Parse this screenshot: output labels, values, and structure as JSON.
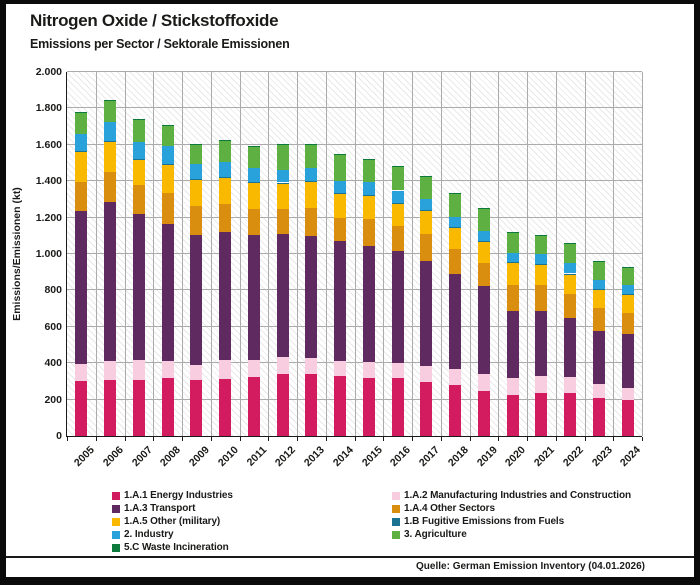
{
  "header": {
    "title": "Nitrogen Oxide / Stickstoffoxide",
    "subtitle": "Emissions per Sector / Sektorale Emissionen"
  },
  "footer": {
    "source": "Quelle: German Emission Inventory (04.01.2026)"
  },
  "chart_data": {
    "type": "bar",
    "stacked": true,
    "title": "Nitrogen Oxide / Stickstoffoxide",
    "subtitle": "Emissions per Sector / Sektorale Emissionen",
    "ylabel": "Emissions/Emissionen (kt)",
    "xlabel": "",
    "units": "kt",
    "ylim": [
      0,
      2000
    ],
    "ytick_step": 200,
    "ytick_labels": [
      "0",
      "200",
      "400",
      "600",
      "800",
      "1.000",
      "1.200",
      "1.400",
      "1.600",
      "1.800",
      "2.000"
    ],
    "grid": true,
    "plot_background": "hatched",
    "legend_position": "bottom",
    "categories": [
      "2005",
      "2006",
      "2007",
      "2008",
      "2009",
      "2010",
      "2011",
      "2012",
      "2013",
      "2014",
      "2015",
      "2016",
      "2017",
      "2018",
      "2019",
      "2020",
      "2021",
      "2022",
      "2023",
      "2024"
    ],
    "series": [
      {
        "id": "energy-industries",
        "name": "1.A.1 Energy Industries",
        "color": "#d31b5f",
        "values": [
          300,
          310,
          310,
          320,
          310,
          315,
          325,
          340,
          340,
          330,
          320,
          320,
          298,
          278,
          250,
          223,
          238,
          238,
          210,
          196
        ]
      },
      {
        "id": "manufacturing-construction",
        "name": "1.A.2 Manufacturing Industries and Construction",
        "color": "#f9cde0",
        "values": [
          95,
          100,
          110,
          90,
          82,
          100,
          90,
          95,
          90,
          82,
          86,
          82,
          86,
          88,
          92,
          97,
          91,
          86,
          77,
          69
        ]
      },
      {
        "id": "transport",
        "name": "1.A.3 Transport",
        "color": "#5f2a60",
        "values": [
          840,
          875,
          800,
          755,
          715,
          705,
          690,
          675,
          670,
          658,
          640,
          616,
          580,
          524,
          481,
          369,
          357,
          325,
          289,
          293
        ]
      },
      {
        "id": "other-sectors",
        "name": "1.A.4 Other Sectors",
        "color": "#d98e0f",
        "values": [
          160,
          165,
          160,
          170,
          155,
          155,
          145,
          135,
          155,
          128,
          148,
          137,
          147,
          137,
          128,
          143,
          142,
          132,
          128,
          118
        ]
      },
      {
        "id": "other-military",
        "name": "1.A.5 Other (military)",
        "color": "#f9b900",
        "values": [
          170,
          170,
          140,
          155,
          145,
          145,
          145,
          145,
          145,
          132,
          128,
          125,
          128,
          116,
          118,
          119,
          113,
          109,
          100,
          101
        ]
      },
      {
        "id": "fugitive-emissions",
        "name": "1.B Fugitive Emissions from Fuels",
        "color": "#1b7291",
        "values": [
          3,
          3,
          3,
          3,
          3,
          3,
          3,
          3,
          3,
          3,
          3,
          3,
          3,
          3,
          3,
          3,
          3,
          3,
          3,
          3
        ]
      },
      {
        "id": "industry",
        "name": "2. Industry",
        "color": "#29a2dc",
        "values": [
          92,
          105,
          95,
          100,
          82,
          85,
          75,
          70,
          72,
          66,
          72,
          66,
          60,
          58,
          55,
          54,
          55,
          55,
          50,
          49
        ]
      },
      {
        "id": "agriculture",
        "name": "3. Agriculture",
        "color": "#5eb043",
        "values": [
          120,
          118,
          120,
          112,
          110,
          115,
          118,
          140,
          130,
          148,
          122,
          133,
          122,
          132,
          124,
          113,
          103,
          109,
          105,
          96
        ]
      },
      {
        "id": "waste-incineration",
        "name": "5.C Waste Incineration",
        "color": "#0c7a3d",
        "values": [
          2,
          2,
          2,
          2,
          2,
          2,
          2,
          2,
          2,
          2,
          2,
          2,
          2,
          2,
          2,
          2,
          2,
          2,
          2,
          2
        ]
      }
    ]
  },
  "legend": {
    "columns": [
      {
        "series": [
          0,
          2,
          4,
          6,
          8
        ]
      },
      {
        "series": [
          1,
          3,
          5,
          7
        ]
      }
    ]
  }
}
